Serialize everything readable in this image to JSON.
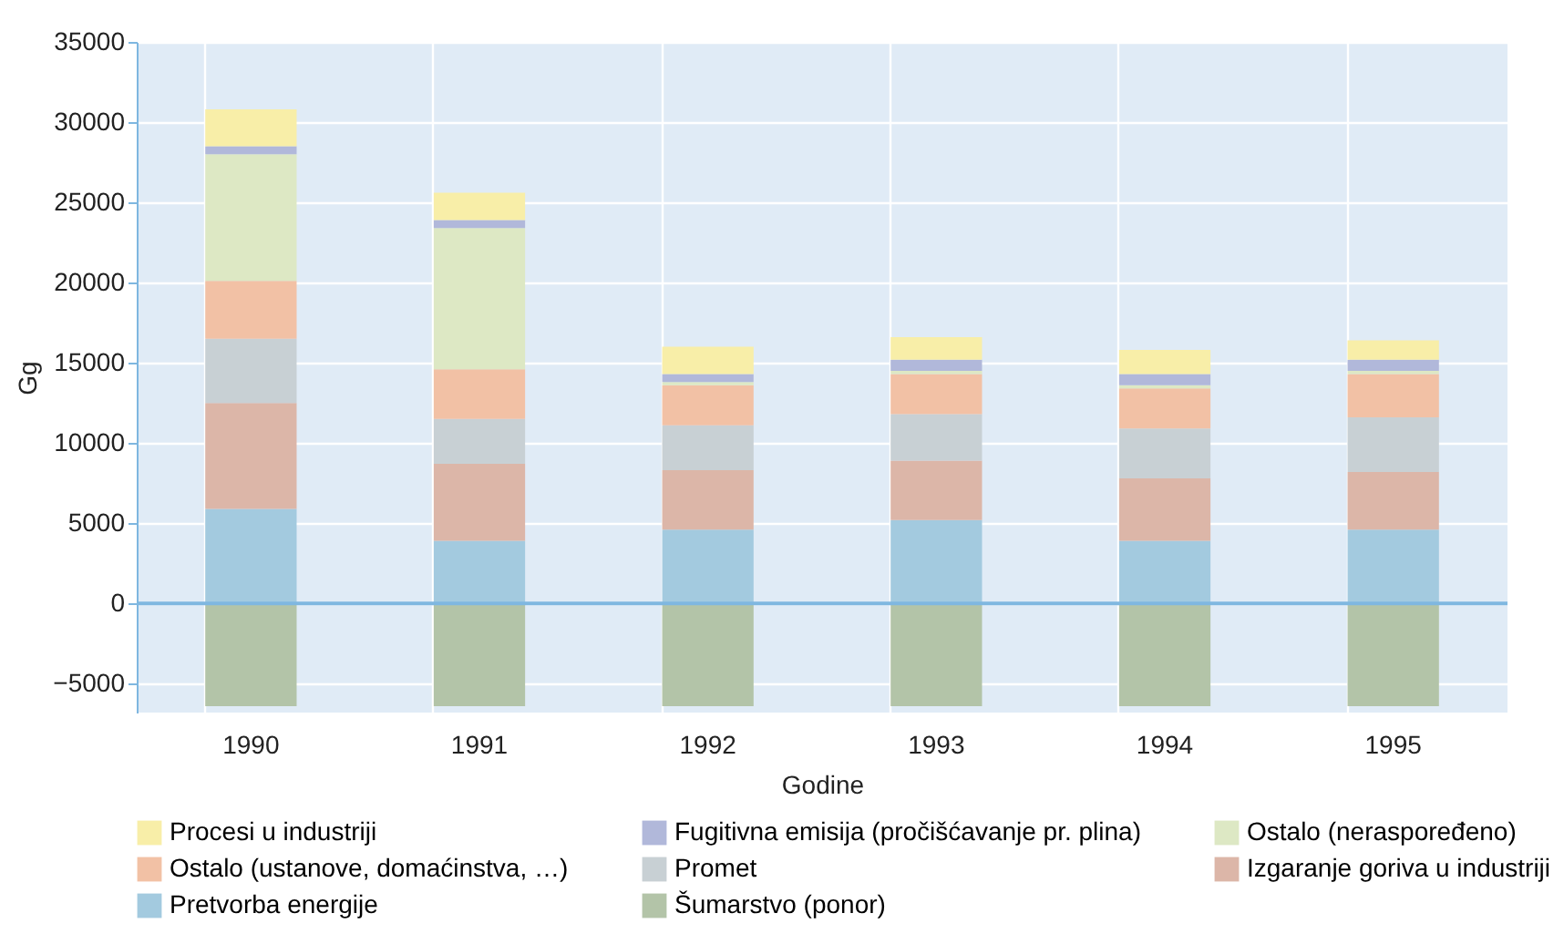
{
  "chart_data": {
    "type": "bar",
    "stacked": true,
    "xlabel": "Godine",
    "ylabel": "Gg",
    "categories": [
      "1990",
      "1991",
      "1992",
      "1993",
      "1994",
      "1995"
    ],
    "series": [
      {
        "name": "Šumarstvo (ponor)",
        "color": "#b3c4a8",
        "values": [
          -6400,
          -6400,
          -6400,
          -6400,
          -6400,
          -6400
        ]
      },
      {
        "name": "Pretvorba energije",
        "color": "#a3cadf",
        "values": [
          5900,
          3900,
          4600,
          5200,
          3900,
          4600
        ]
      },
      {
        "name": "Izgaranje goriva u industriji",
        "color": "#dcb6a8",
        "values": [
          6600,
          4800,
          3700,
          3700,
          3900,
          3600
        ]
      },
      {
        "name": "Promet",
        "color": "#c8d0d4",
        "values": [
          4000,
          2800,
          2800,
          2900,
          3100,
          3400
        ]
      },
      {
        "name": "Ostalo (ustanove, domaćinstva, …)",
        "color": "#f2c1a5",
        "values": [
          3600,
          3100,
          2500,
          2500,
          2500,
          2700
        ]
      },
      {
        "name": "Ostalo (neraspoređeno)",
        "color": "#dde8c4",
        "values": [
          7900,
          8800,
          200,
          200,
          200,
          200
        ]
      },
      {
        "name": "Fugitivna emisija (pročišćavanje pr. plina)",
        "color": "#b1b8da",
        "values": [
          500,
          500,
          500,
          700,
          700,
          700
        ]
      },
      {
        "name": "Procesi u industriji",
        "color": "#f8eea8",
        "values": [
          2300,
          1700,
          1700,
          1400,
          1500,
          1200
        ]
      }
    ],
    "ylim": [
      -6800,
      35000
    ],
    "yticks": [
      -5000,
      0,
      5000,
      10000,
      15000,
      20000,
      25000,
      30000,
      35000
    ],
    "grid": true,
    "legend": "bottom",
    "ref_lines": [
      {
        "axis": "y",
        "value": 0,
        "color": "#7fb7e0"
      }
    ]
  }
}
